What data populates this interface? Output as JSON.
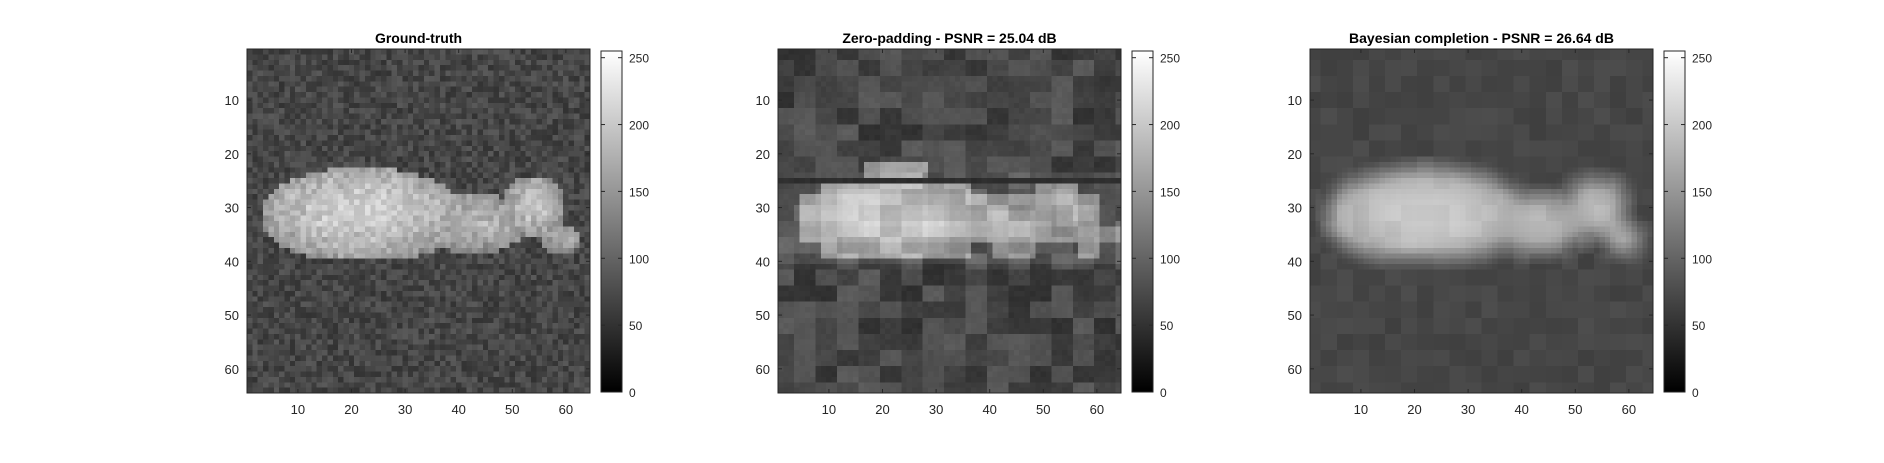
{
  "figure": {
    "background": "#ffffff",
    "colormap": "gray"
  },
  "chart_data": [
    {
      "type": "heatmap",
      "title": "Ground-truth",
      "xlabel": "",
      "ylabel": "",
      "image_size": [
        64,
        64
      ],
      "xlim": [
        0.5,
        64.5
      ],
      "ylim": [
        0.5,
        64.5
      ],
      "y_direction": "reverse",
      "xticks": [
        10,
        20,
        30,
        40,
        50,
        60
      ],
      "yticks": [
        10,
        20,
        30,
        40,
        50,
        60
      ],
      "colorbar": {
        "range": [
          0,
          255
        ],
        "ticks": [
          0,
          50,
          100,
          150,
          200,
          250
        ]
      },
      "image_content": "white goat lying on dark gray grass",
      "background_level": 70,
      "subject_level": 215,
      "reconstruction": "sharp"
    },
    {
      "type": "heatmap",
      "title": "Zero-padding - PSNR = 25.04 dB",
      "xlabel": "",
      "ylabel": "",
      "image_size": [
        64,
        64
      ],
      "xlim": [
        0.5,
        64.5
      ],
      "ylim": [
        0.5,
        64.5
      ],
      "y_direction": "reverse",
      "xticks": [
        10,
        20,
        30,
        40,
        50,
        60
      ],
      "yticks": [
        10,
        20,
        30,
        40,
        50,
        60
      ],
      "colorbar": {
        "range": [
          0,
          255
        ],
        "ticks": [
          0,
          50,
          100,
          150,
          200,
          250
        ]
      },
      "psnr_db": 25.04,
      "image_content": "blocky low-resolution reconstruction of the goat",
      "background_level": 70,
      "subject_level": 200,
      "reconstruction": "blocky"
    },
    {
      "type": "heatmap",
      "title": "Bayesian completion - PSNR = 26.64 dB",
      "xlabel": "",
      "ylabel": "",
      "image_size": [
        64,
        64
      ],
      "xlim": [
        0.5,
        64.5
      ],
      "ylim": [
        0.5,
        64.5
      ],
      "y_direction": "reverse",
      "xticks": [
        10,
        20,
        30,
        40,
        50,
        60
      ],
      "yticks": [
        10,
        20,
        30,
        40,
        50,
        60
      ],
      "colorbar": {
        "range": [
          0,
          255
        ],
        "ticks": [
          0,
          50,
          100,
          150,
          200,
          250
        ]
      },
      "psnr_db": 26.64,
      "image_content": "smooth blurred reconstruction of the goat",
      "background_level": 70,
      "subject_level": 205,
      "reconstruction": "smooth"
    }
  ]
}
